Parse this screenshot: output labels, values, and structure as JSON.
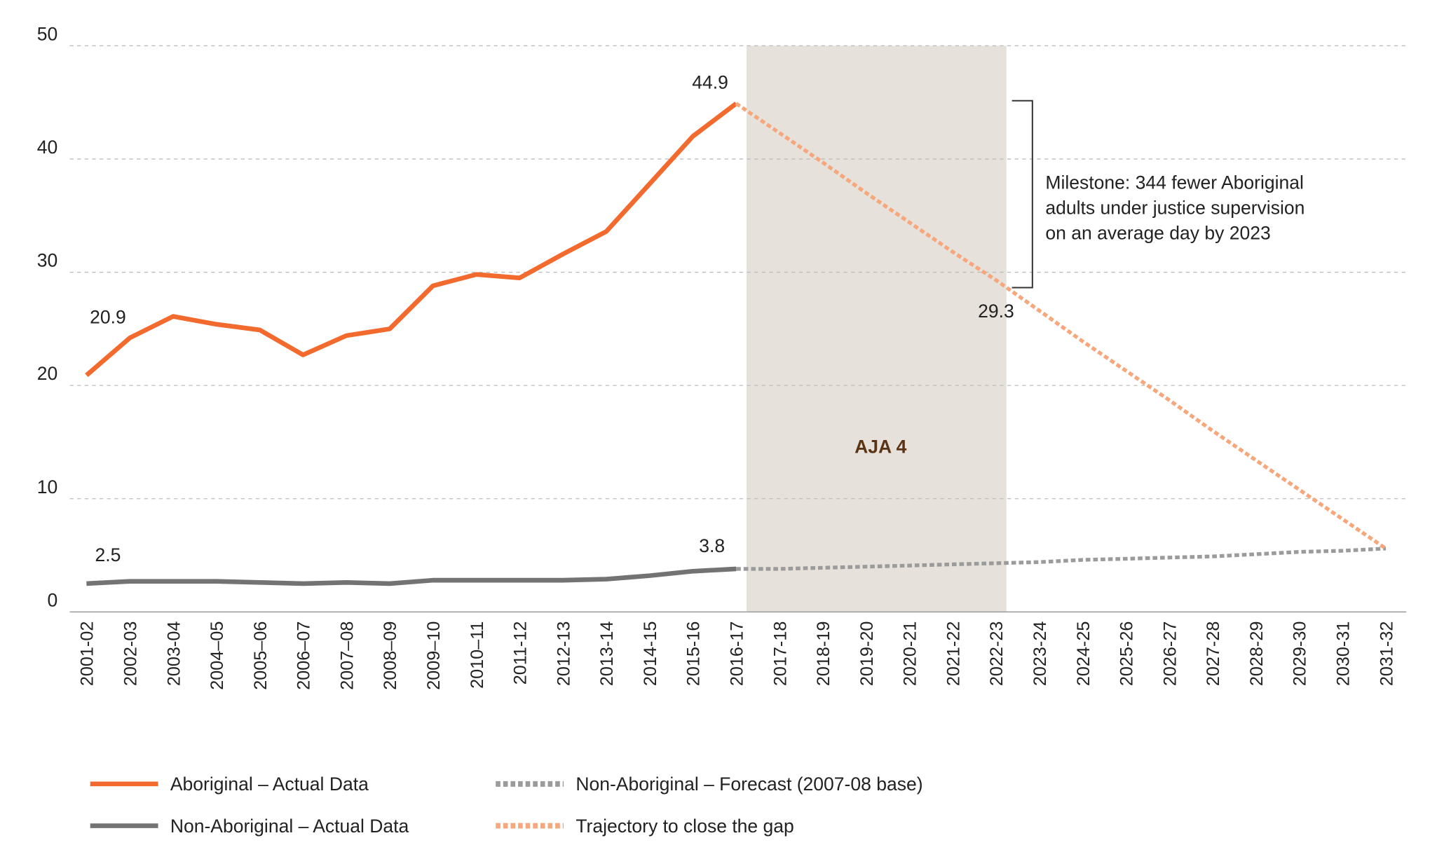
{
  "chart_data": {
    "type": "line",
    "categories": [
      "2001-02",
      "2002-03",
      "2003-04",
      "2004–05",
      "2005–06",
      "2006–07",
      "2007–08",
      "2008–09",
      "2009–10",
      "2010–11",
      "2011-12",
      "2012-13",
      "2013-14",
      "2014-15",
      "2015-16",
      "2016-17",
      "2017-18",
      "2018-19",
      "2019-20",
      "2020-21",
      "2021-22",
      "2022-23",
      "2023-24",
      "2024-25",
      "2025-26",
      "2026-27",
      "2027-28",
      "2028-29",
      "2029-30",
      "2030-31",
      "2031-32"
    ],
    "series": [
      {
        "name": "Aboriginal – Actual Data",
        "color": "#f26a2e",
        "line_style": "solid",
        "values": [
          20.9,
          24.2,
          26.1,
          25.4,
          24.9,
          22.7,
          24.4,
          25.0,
          28.8,
          29.8,
          29.5,
          31.6,
          33.6,
          37.8,
          42.0,
          44.9,
          null,
          null,
          null,
          null,
          null,
          null,
          null,
          null,
          null,
          null,
          null,
          null,
          null,
          null,
          null
        ]
      },
      {
        "name": "Non-Aboriginal – Actual Data",
        "color": "#737373",
        "line_style": "solid",
        "values": [
          2.5,
          2.7,
          2.7,
          2.7,
          2.6,
          2.5,
          2.6,
          2.5,
          2.8,
          2.8,
          2.8,
          2.8,
          2.9,
          3.2,
          3.6,
          3.8,
          null,
          null,
          null,
          null,
          null,
          null,
          null,
          null,
          null,
          null,
          null,
          null,
          null,
          null,
          null
        ]
      },
      {
        "name": "Non-Aboriginal – Forecast (2007-08 base)",
        "color": "#9b9b9b",
        "line_style": "dashed",
        "values": [
          null,
          null,
          null,
          null,
          null,
          null,
          null,
          null,
          null,
          null,
          null,
          null,
          null,
          null,
          null,
          3.8,
          3.8,
          3.9,
          4.0,
          4.1,
          4.2,
          4.3,
          4.4,
          4.6,
          4.7,
          4.8,
          4.9,
          5.1,
          5.3,
          5.4,
          5.6
        ]
      },
      {
        "name": "Trajectory to close the gap",
        "color": "#f7a77c",
        "line_style": "dashed",
        "values": [
          null,
          null,
          null,
          null,
          null,
          null,
          null,
          null,
          null,
          null,
          null,
          null,
          null,
          null,
          null,
          44.9,
          42.3,
          39.7,
          37.0,
          34.4,
          31.8,
          29.3,
          26.6,
          23.9,
          21.3,
          18.7,
          16.0,
          13.4,
          10.8,
          8.2,
          5.6
        ]
      }
    ],
    "data_labels": [
      {
        "series": 0,
        "index": 0
      },
      {
        "series": 1,
        "index": 0
      },
      {
        "series": 0,
        "index": 15
      },
      {
        "series": 1,
        "index": 15
      },
      {
        "series": 3,
        "index": 21
      }
    ],
    "shaded_region": {
      "label": "AJA 4",
      "start": "2016-17",
      "end": "2022-23",
      "color": "#e6e1db"
    },
    "annotation": {
      "lines": [
        "Milestone: 344 fewer Aboriginal",
        "adults under justice supervision",
        "on an average day by 2023"
      ]
    },
    "ylim": [
      0,
      50
    ],
    "yticks": [
      0,
      10,
      20,
      30,
      40,
      50
    ],
    "grid": true,
    "legend": "bottom"
  }
}
